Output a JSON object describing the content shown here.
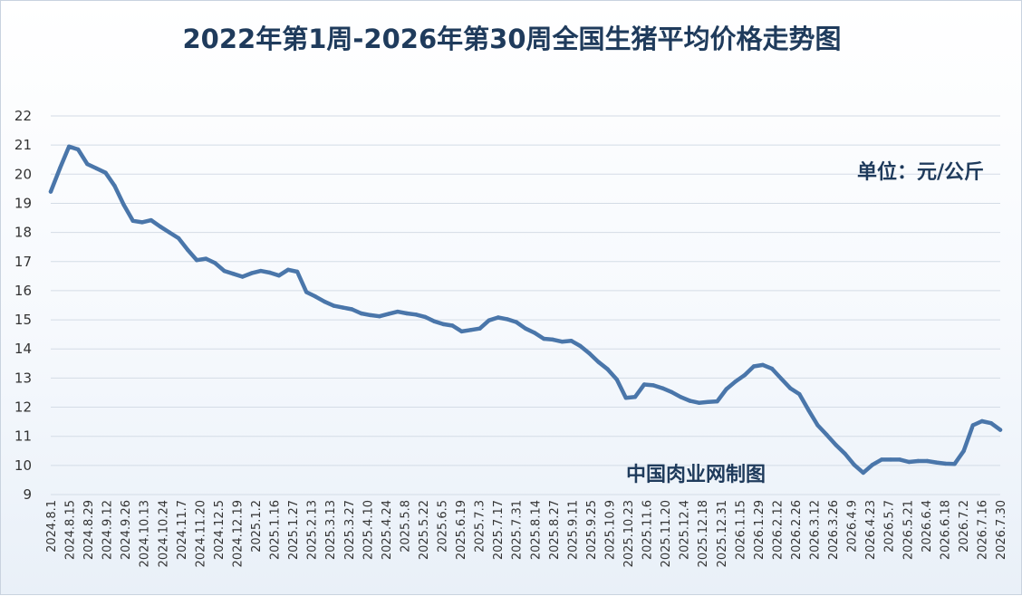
{
  "chart_data": {
    "type": "line",
    "title": "2022年第1周-2026年第30周全国生猪平均价格走势图",
    "unit_note": "单位：元/公斤",
    "source_note": "中国肉业网制图",
    "xlabel": "",
    "ylabel": "",
    "ylim": [
      9,
      22
    ],
    "yticks": [
      9,
      10,
      11,
      12,
      13,
      14,
      15,
      16,
      17,
      18,
      19,
      20,
      21,
      22
    ],
    "grid": true,
    "legend": "none",
    "line_color": "#4a76aa",
    "xtick_labels": [
      "2024.8.1",
      "2024.8.15",
      "2024.8.29",
      "2024.9.12",
      "2024.9.26",
      "2024.10.13",
      "2024.10.24",
      "2024.11.7",
      "2024.11.20",
      "2024.12.5",
      "2024.12.19",
      "2025.1.2",
      "2025.1.16",
      "2025.1.27",
      "2025.2.13",
      "2025.3.13",
      "2025.3.27",
      "2025.4.10",
      "2025.4.24",
      "2025.5.8",
      "2025.5.22",
      "2025.6.5",
      "2025.6.19",
      "2025.7.3",
      "2025.7.17",
      "2025.7.31",
      "2025.8.14",
      "2025.8.27",
      "2025.9.11",
      "2025.9.25",
      "2025.10.9",
      "2025.10.23",
      "2025.11.6",
      "2025.11.20",
      "2025.12.4",
      "2025.12.18",
      "2025.12.31",
      "2026.1.15",
      "2026.1.29",
      "2026.2.12",
      "2026.2.26",
      "2026.3.12",
      "2026.3.26",
      "2026.4.9",
      "2026.4.23",
      "2026.5.7",
      "2026.5.21",
      "2026.6.4",
      "2026.6.18",
      "2026.7.2",
      "2026.7.16",
      "2026.7.30"
    ],
    "series": [
      {
        "values": [
          19.4,
          20.2,
          20.95,
          20.85,
          20.35,
          20.2,
          20.05,
          19.6,
          18.95,
          18.4,
          18.35,
          18.42,
          18.2,
          18.0,
          17.8,
          17.4,
          17.05,
          17.1,
          16.95,
          16.68,
          16.58,
          16.48,
          16.6,
          16.68,
          16.62,
          16.52,
          16.72,
          16.65,
          15.95,
          15.8,
          15.62,
          15.48,
          15.42,
          15.36,
          15.22,
          15.16,
          15.12,
          15.2,
          15.28,
          15.22,
          15.18,
          15.1,
          14.95,
          14.85,
          14.8,
          14.6,
          14.65,
          14.7,
          14.98,
          15.08,
          15.02,
          14.92,
          14.7,
          14.55,
          14.35,
          14.32,
          14.25,
          14.28,
          14.1,
          13.85,
          13.55,
          13.3,
          12.95,
          12.32,
          12.35,
          12.78,
          12.75,
          12.65,
          12.52,
          12.35,
          12.22,
          12.15,
          12.18,
          12.2,
          12.62,
          12.88,
          13.1,
          13.4,
          13.45,
          13.32,
          12.98,
          12.65,
          12.45,
          11.9,
          11.38,
          11.05,
          10.7,
          10.4,
          10.02,
          9.75,
          10.02,
          10.2,
          10.2,
          10.2,
          10.12,
          10.15,
          10.15,
          10.1,
          10.06,
          10.05,
          10.5,
          11.38,
          11.52,
          11.45,
          11.22
        ]
      }
    ]
  }
}
